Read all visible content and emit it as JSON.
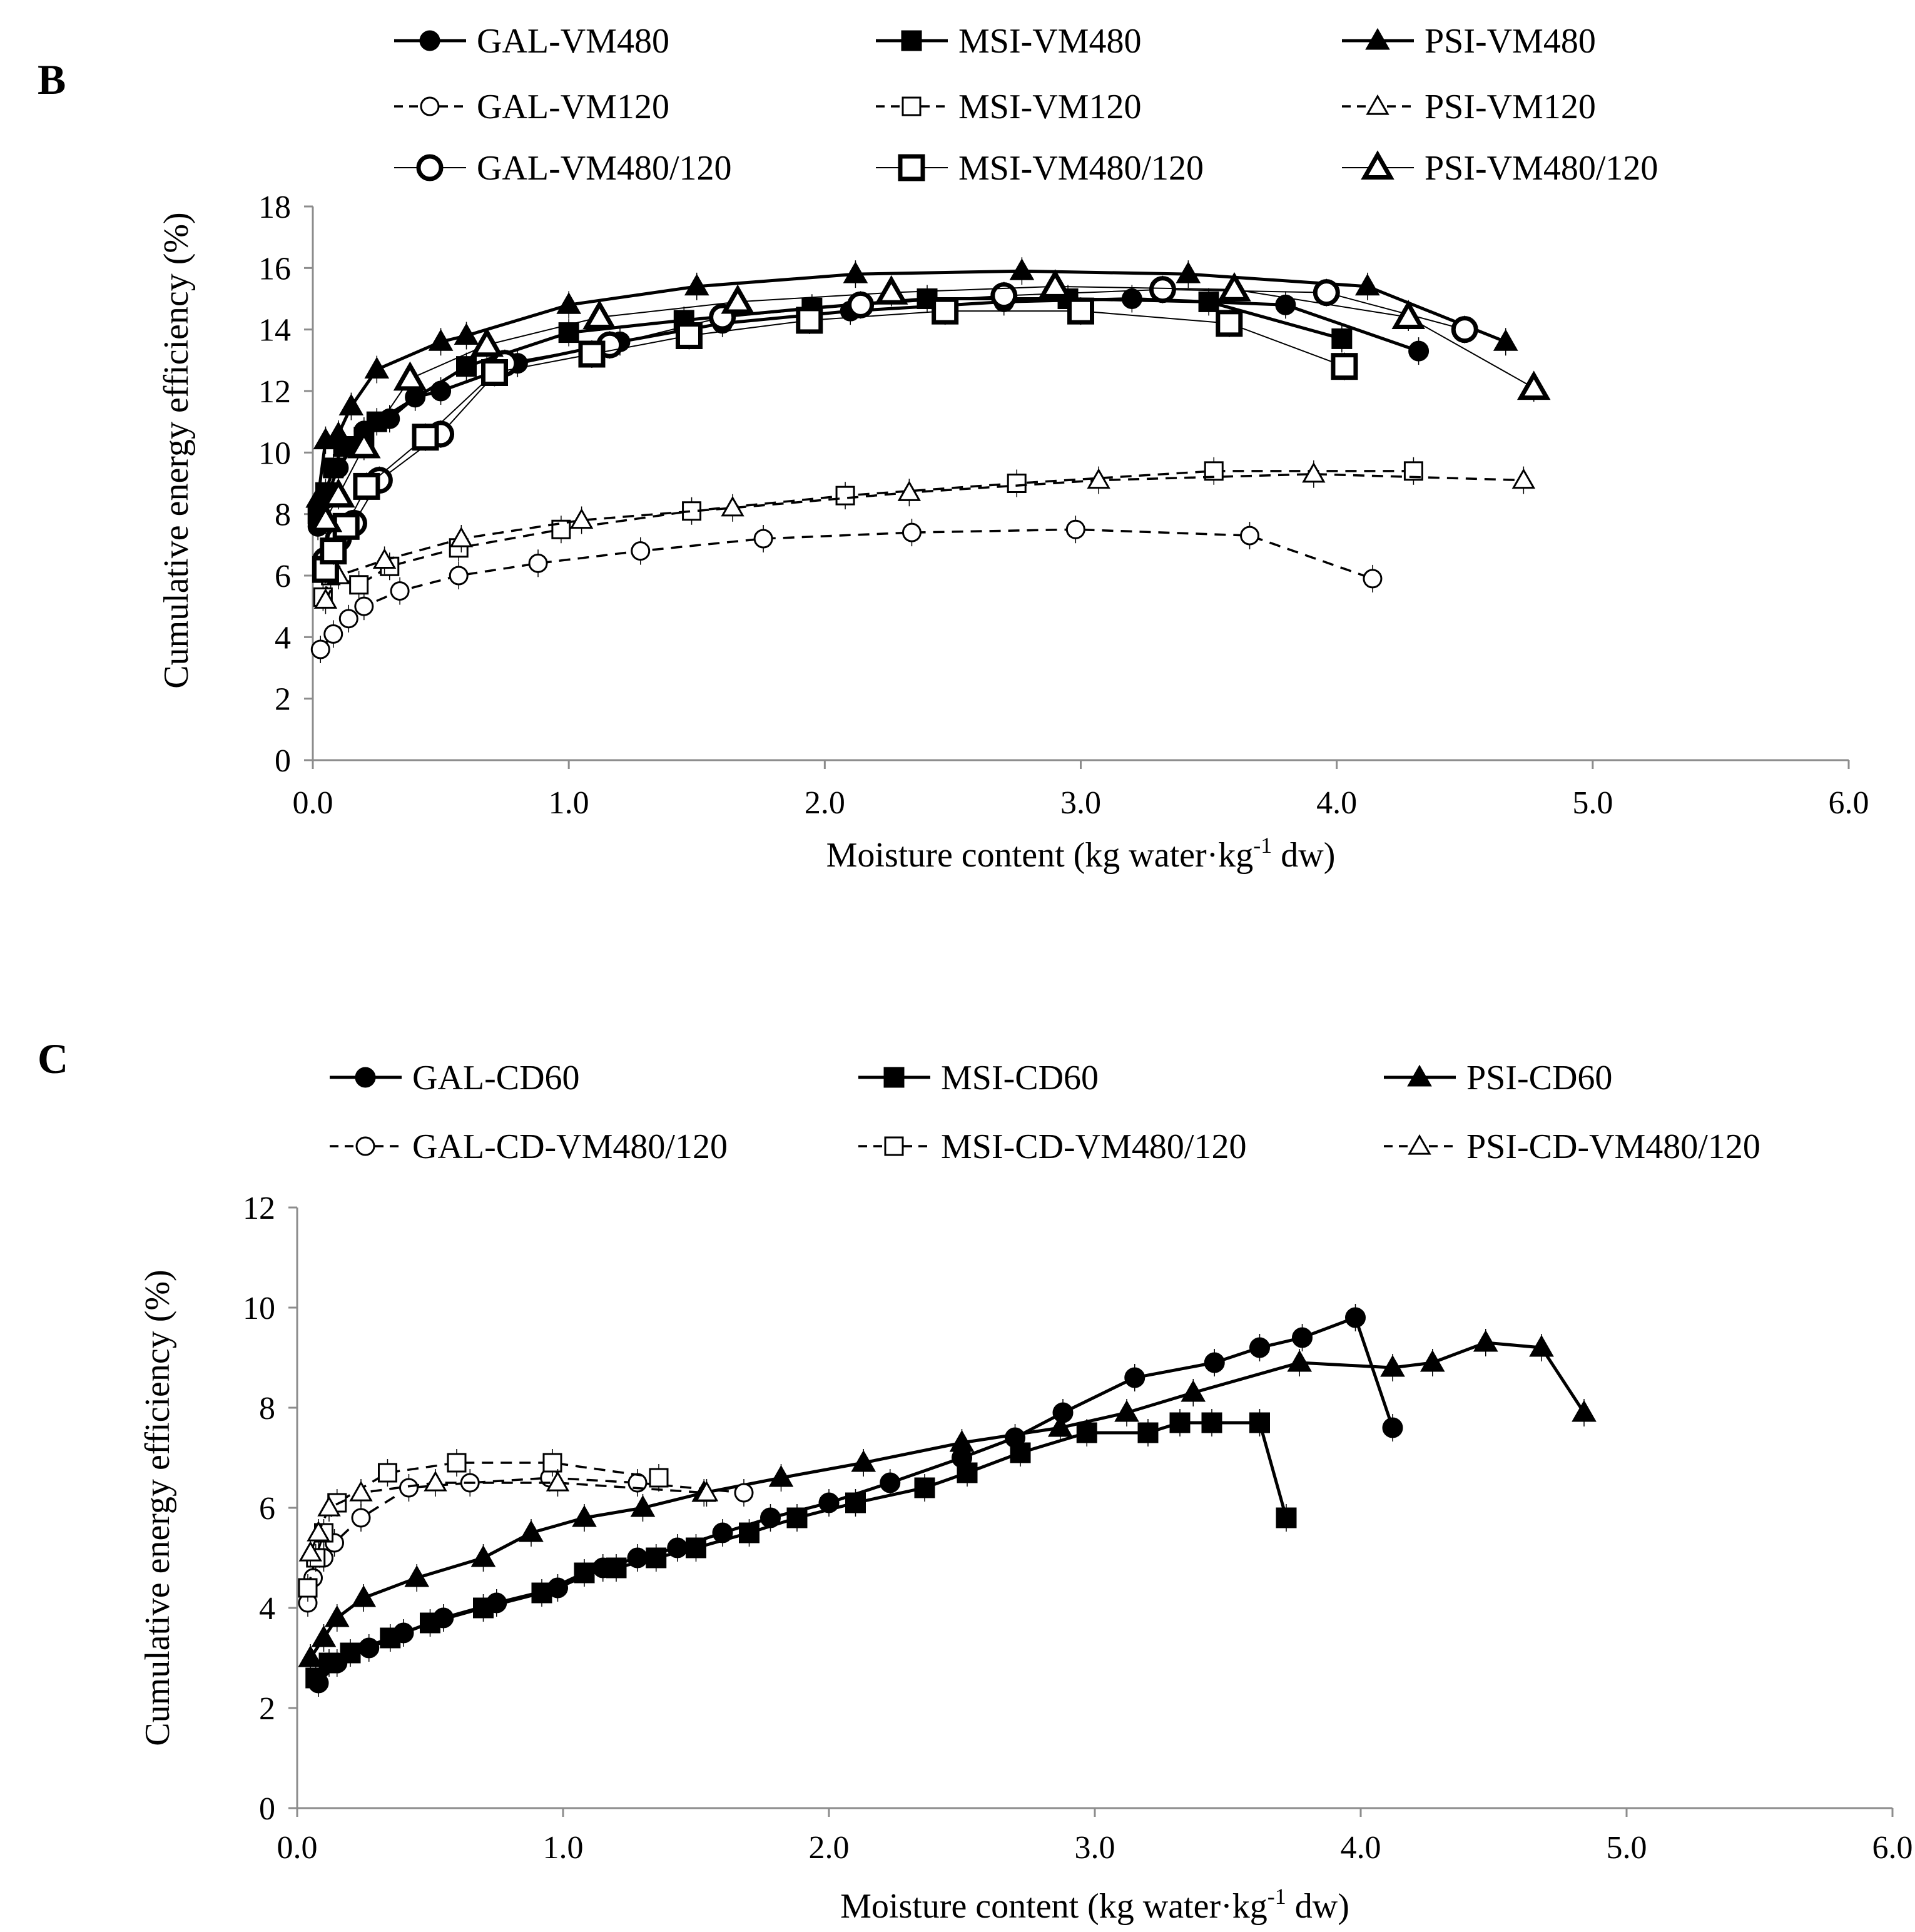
{
  "chart_data": [
    {
      "panel": "B",
      "type": "line",
      "xlabel": "Moisture content (kg water·kg-1  dw)",
      "ylabel": "Cumulative energy efficiency (%)",
      "xlim": [
        0,
        6
      ],
      "ylim": [
        0,
        18
      ],
      "xticks": [
        "0.0",
        "1.0",
        "2.0",
        "3.0",
        "4.0",
        "5.0",
        "6.0"
      ],
      "yticks": [
        "0",
        "2",
        "4",
        "6",
        "8",
        "10",
        "12",
        "14",
        "16",
        "18"
      ],
      "grid": false,
      "legend_position": "top",
      "series": [
        {
          "name": "GAL-VM480",
          "marker": "circle",
          "fill": "filled",
          "dash": "solid",
          "weight": "bold",
          "x": [
            0.02,
            0.05,
            0.1,
            0.2,
            0.3,
            0.4,
            0.5,
            0.8,
            1.2,
            1.6,
            2.1,
            2.7,
            3.2,
            3.8,
            4.32
          ],
          "y": [
            7.6,
            8.5,
            9.5,
            10.7,
            11.1,
            11.8,
            12.0,
            12.9,
            13.6,
            14.2,
            14.6,
            14.9,
            15.0,
            14.8,
            13.3
          ]
        },
        {
          "name": "MSI-VM480",
          "marker": "square",
          "fill": "filled",
          "dash": "solid",
          "weight": "bold",
          "x": [
            0.02,
            0.05,
            0.08,
            0.12,
            0.2,
            0.25,
            0.6,
            1.0,
            1.45,
            1.95,
            2.4,
            2.95,
            3.5,
            4.02
          ],
          "y": [
            8.0,
            8.7,
            9.5,
            10.2,
            10.5,
            11.0,
            12.8,
            13.9,
            14.3,
            14.7,
            15.0,
            15.0,
            14.9,
            13.7
          ]
        },
        {
          "name": "PSI-VM480",
          "marker": "triangle",
          "fill": "filled",
          "dash": "solid",
          "weight": "bold",
          "x": [
            0.02,
            0.05,
            0.1,
            0.15,
            0.25,
            0.5,
            0.6,
            1.0,
            1.5,
            2.12,
            2.77,
            3.42,
            4.12,
            4.66
          ],
          "y": [
            8.5,
            10.4,
            10.6,
            11.5,
            12.7,
            13.6,
            13.8,
            14.8,
            15.4,
            15.8,
            15.9,
            15.8,
            15.4,
            13.6
          ]
        },
        {
          "name": "GAL-VM120",
          "marker": "circle",
          "fill": "open",
          "dash": "dashed",
          "weight": "normal",
          "x": [
            0.03,
            0.08,
            0.14,
            0.2,
            0.34,
            0.57,
            0.88,
            1.28,
            1.76,
            2.34,
            2.98,
            3.66,
            4.14
          ],
          "y": [
            3.6,
            4.1,
            4.6,
            5.0,
            5.5,
            6.0,
            6.4,
            6.8,
            7.2,
            7.4,
            7.5,
            7.3,
            5.9
          ]
        },
        {
          "name": "MSI-VM120",
          "marker": "square",
          "fill": "open",
          "dash": "dashed",
          "weight": "normal",
          "x": [
            0.04,
            0.07,
            0.18,
            0.3,
            0.57,
            0.97,
            1.48,
            2.08,
            2.75,
            3.52,
            4.3
          ],
          "y": [
            5.3,
            6.0,
            5.7,
            6.3,
            6.9,
            7.5,
            8.1,
            8.6,
            9.0,
            9.4,
            9.4
          ]
        },
        {
          "name": "PSI-VM120",
          "marker": "triangle",
          "fill": "open",
          "dash": "dashed",
          "weight": "normal",
          "x": [
            0.05,
            0.1,
            0.28,
            0.58,
            1.05,
            1.64,
            2.33,
            3.07,
            3.91,
            4.73
          ],
          "y": [
            5.2,
            6.0,
            6.5,
            7.2,
            7.8,
            8.2,
            8.7,
            9.1,
            9.3,
            9.1
          ]
        },
        {
          "name": "GAL-VM480/120",
          "marker": "circle",
          "fill": "open",
          "dash": "solid",
          "weight": "thin",
          "size": "large",
          "x": [
            0.05,
            0.1,
            0.16,
            0.26,
            0.5,
            0.75,
            1.16,
            1.6,
            2.14,
            2.7,
            3.32,
            3.96,
            4.5
          ],
          "y": [
            6.5,
            7.2,
            7.7,
            9.1,
            10.6,
            12.9,
            13.5,
            14.4,
            14.8,
            15.1,
            15.3,
            15.2,
            14.0
          ]
        },
        {
          "name": "MSI-VM480/120",
          "marker": "square",
          "fill": "open",
          "dash": "solid",
          "weight": "thin",
          "size": "large",
          "x": [
            0.05,
            0.08,
            0.13,
            0.21,
            0.44,
            0.71,
            1.09,
            1.47,
            1.94,
            2.47,
            3.0,
            3.58,
            4.03
          ],
          "y": [
            6.2,
            6.8,
            7.6,
            8.9,
            10.5,
            12.6,
            13.2,
            13.8,
            14.3,
            14.6,
            14.6,
            14.2,
            12.8
          ]
        },
        {
          "name": "PSI-VM480/120",
          "marker": "triangle",
          "fill": "open",
          "dash": "solid",
          "weight": "thin",
          "size": "large",
          "x": [
            0.05,
            0.1,
            0.2,
            0.38,
            0.68,
            1.12,
            1.66,
            2.26,
            2.9,
            3.6,
            4.28,
            4.77
          ],
          "y": [
            7.8,
            8.6,
            10.2,
            12.4,
            13.5,
            14.4,
            14.9,
            15.2,
            15.4,
            15.3,
            14.4,
            12.1
          ]
        }
      ]
    },
    {
      "panel": "C",
      "type": "line",
      "xlabel": "Moisture content (kg water·kg-1  dw)",
      "ylabel": "Cumulative energy efficiency (%)",
      "xlim": [
        0,
        6
      ],
      "ylim": [
        0,
        12
      ],
      "xticks": [
        "0.0",
        "1.0",
        "2.0",
        "3.0",
        "4.0",
        "5.0",
        "6.0"
      ],
      "yticks": [
        "0",
        "2",
        "4",
        "6",
        "8",
        "10",
        "12"
      ],
      "grid": false,
      "legend_position": "top",
      "series": [
        {
          "name": "GAL-CD60",
          "marker": "circle",
          "fill": "filled",
          "dash": "solid",
          "weight": "bold",
          "x": [
            0.08,
            0.15,
            0.27,
            0.4,
            0.55,
            0.75,
            0.98,
            1.15,
            1.28,
            1.43,
            1.6,
            1.78,
            2.0,
            2.23,
            2.5,
            2.7,
            2.88,
            3.15,
            3.45,
            3.62,
            3.78,
            3.98,
            4.12
          ],
          "y": [
            2.5,
            2.9,
            3.2,
            3.5,
            3.8,
            4.1,
            4.4,
            4.8,
            5.0,
            5.2,
            5.5,
            5.8,
            6.1,
            6.5,
            7.0,
            7.4,
            7.9,
            8.6,
            8.9,
            9.2,
            9.4,
            9.8,
            7.6
          ]
        },
        {
          "name": "MSI-CD60",
          "marker": "square",
          "fill": "filled",
          "dash": "solid",
          "weight": "bold",
          "x": [
            0.07,
            0.12,
            0.2,
            0.35,
            0.5,
            0.7,
            0.92,
            1.08,
            1.2,
            1.35,
            1.5,
            1.7,
            1.88,
            2.1,
            2.36,
            2.52,
            2.72,
            2.97,
            3.2,
            3.32,
            3.44,
            3.62,
            3.72
          ],
          "y": [
            2.6,
            2.9,
            3.1,
            3.4,
            3.7,
            4.0,
            4.3,
            4.7,
            4.8,
            5.0,
            5.2,
            5.5,
            5.8,
            6.1,
            6.4,
            6.7,
            7.1,
            7.5,
            7.5,
            7.7,
            7.7,
            7.7,
            5.8
          ]
        },
        {
          "name": "PSI-CD60",
          "marker": "triangle",
          "fill": "filled",
          "dash": "solid",
          "weight": "bold",
          "x": [
            0.05,
            0.1,
            0.15,
            0.25,
            0.45,
            0.7,
            0.88,
            1.08,
            1.3,
            1.53,
            1.82,
            2.13,
            2.5,
            2.87,
            3.12,
            3.37,
            3.77,
            4.12,
            4.27,
            4.47,
            4.68,
            4.84
          ],
          "y": [
            3.0,
            3.4,
            3.8,
            4.2,
            4.6,
            5.0,
            5.5,
            5.8,
            6.0,
            6.3,
            6.6,
            6.9,
            7.3,
            7.6,
            7.9,
            8.3,
            8.9,
            8.8,
            8.9,
            9.3,
            9.2,
            7.9
          ]
        },
        {
          "name": "GAL-CD-VM480/120",
          "marker": "circle",
          "fill": "open",
          "dash": "dashed",
          "weight": "normal",
          "x": [
            0.04,
            0.06,
            0.1,
            0.14,
            0.24,
            0.42,
            0.65,
            0.95,
            1.28,
            1.68
          ],
          "y": [
            4.1,
            4.6,
            5.0,
            5.3,
            5.8,
            6.4,
            6.5,
            6.6,
            6.5,
            6.3
          ]
        },
        {
          "name": "MSI-CD-VM480/120",
          "marker": "square",
          "fill": "open",
          "dash": "dashed",
          "weight": "normal",
          "x": [
            0.04,
            0.07,
            0.1,
            0.15,
            0.34,
            0.6,
            0.96,
            1.36
          ],
          "y": [
            4.4,
            5.0,
            5.5,
            6.1,
            6.7,
            6.9,
            6.9,
            6.6
          ]
        },
        {
          "name": "PSI-CD-VM480/120",
          "marker": "triangle",
          "fill": "open",
          "dash": "dashed",
          "weight": "normal",
          "x": [
            0.05,
            0.08,
            0.12,
            0.24,
            0.52,
            0.98,
            1.54
          ],
          "y": [
            5.1,
            5.5,
            6.0,
            6.3,
            6.5,
            6.5,
            6.3
          ]
        }
      ]
    }
  ]
}
